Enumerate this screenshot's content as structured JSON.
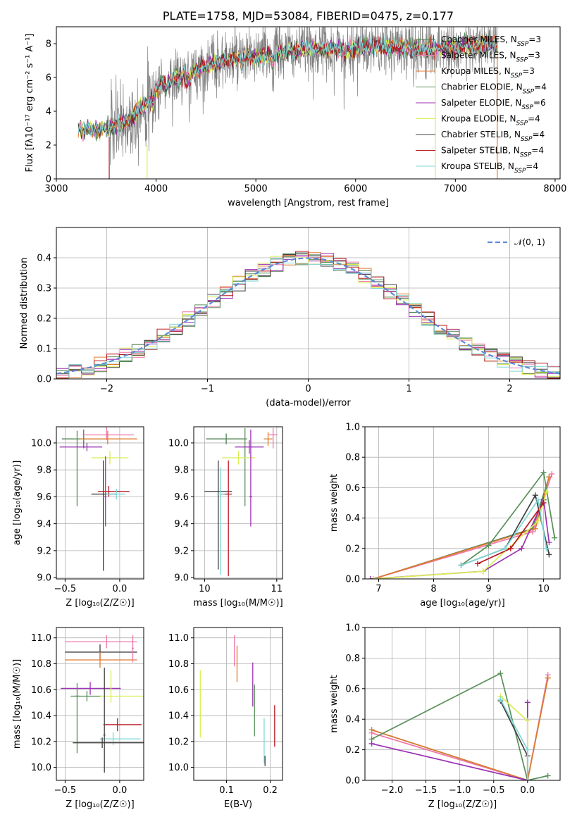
{
  "colors": {
    "chabrier_miles": "#4d7f4d",
    "salpeter_miles": "#ee77aa",
    "kroupa_miles": "#e07b2e",
    "chabrier_elodie": "#5a8f5a",
    "salpeter_elodie": "#9b30b4",
    "kroupa_elodie": "#d8ee55",
    "chabrier_stelib": "#404040",
    "salpeter_stelib": "#b8141e",
    "kroupa_stelib": "#7fd7d7",
    "observed": "#808080",
    "normal": "#5b8bd6"
  },
  "chart_data": [
    {
      "id": "spectrum",
      "type": "line",
      "title": "PLATE=1758, MJD=53084, FIBERID=0475, z=0.177",
      "xlabel": "wavelength [Angstrom, rest frame]",
      "ylabel": "Flux [fλ10⁻¹⁷ erg cm⁻² s⁻¹ A⁻¹]",
      "xlim": [
        3000,
        8050
      ],
      "ylim": [
        0,
        9
      ],
      "xticks": [
        "3000",
        "4000",
        "5000",
        "6000",
        "7000",
        "8000"
      ],
      "yticks": [
        "0",
        "2",
        "4",
        "6",
        "8"
      ],
      "grid": false,
      "legend_position": "top-right",
      "continuum": {
        "x": [
          3220,
          3500,
          3700,
          3900,
          4050,
          4300,
          4600,
          4900,
          5200,
          5500,
          5800,
          6100,
          6400,
          6700,
          7000,
          7300,
          7420
        ],
        "y": [
          2.9,
          3.0,
          3.3,
          4.6,
          5.6,
          6.2,
          6.9,
          7.2,
          7.4,
          7.7,
          7.7,
          7.8,
          7.8,
          7.7,
          7.8,
          7.9,
          8.0
        ]
      },
      "series": [
        {
          "name": "Chabrier MILES, N_SSP=3",
          "color_key": "chabrier_miles"
        },
        {
          "name": "Salpeter MILES, N_SSP=3",
          "color_key": "salpeter_miles"
        },
        {
          "name": "Kroupa MILES, N_SSP=3",
          "color_key": "kroupa_miles"
        },
        {
          "name": "Chabrier ELODIE, N_SSP=4",
          "color_key": "chabrier_elodie"
        },
        {
          "name": "Salpeter ELODIE, N_SSP=6",
          "color_key": "salpeter_elodie"
        },
        {
          "name": "Kroupa ELODIE, N_SSP=4",
          "color_key": "kroupa_elodie"
        },
        {
          "name": "Chabrier STELIB, N_SSP=4",
          "color_key": "chabrier_stelib"
        },
        {
          "name": "Salpeter STELIB, N_SSP=4",
          "color_key": "salpeter_stelib"
        },
        {
          "name": "Kroupa STELIB, N_SSP=4",
          "color_key": "kroupa_stelib"
        }
      ]
    },
    {
      "id": "residuals",
      "type": "line",
      "xlabel": "(data-model)/error",
      "ylabel": "Normed distribution",
      "xlim": [
        -2.5,
        2.5
      ],
      "ylim": [
        0,
        0.5
      ],
      "xticks": [
        "−2",
        "−1",
        "0",
        "1",
        "2"
      ],
      "yticks": [
        "0.0",
        "0.1",
        "0.2",
        "0.3",
        "0.4"
      ],
      "grid": true,
      "legend_position": "top-right",
      "legend_label": "𝒩(0, 1)"
    },
    {
      "id": "age_vs_Z",
      "type": "scatter",
      "xlabel": "Z [log₁₀(Z/Z☉)]",
      "ylabel": "age  [log₁₀(age/yr)]",
      "xlim": [
        -0.58,
        0.22
      ],
      "ylim": [
        8.99,
        10.12
      ],
      "xticks": [
        "−0.5",
        "0.0"
      ],
      "yticks": [
        "9.0",
        "9.2",
        "9.4",
        "9.6",
        "9.8",
        "10.0"
      ],
      "grid": true,
      "points": [
        {
          "x": -0.33,
          "y": 10.03,
          "xerr": [
            0.2,
            0.2
          ],
          "yerr": [
            0.07,
            0.07
          ],
          "color_key": "chabrier_miles"
        },
        {
          "x": -0.12,
          "y": 10.06,
          "xerr": [
            0.22,
            0.25
          ],
          "yerr": [
            0.04,
            0.06
          ],
          "color_key": "salpeter_miles"
        },
        {
          "x": -0.11,
          "y": 10.03,
          "xerr": [
            0.25,
            0.27
          ],
          "yerr": [
            0.04,
            0.06
          ],
          "color_key": "kroupa_miles"
        },
        {
          "x": -0.39,
          "y": 10.03,
          "xerr": [
            0.03,
            0.03
          ],
          "yerr": [
            0.5,
            0.06
          ],
          "color_key": "chabrier_elodie"
        },
        {
          "x": -0.3,
          "y": 9.97,
          "xerr": [
            0.25,
            0.14
          ],
          "yerr": [
            0.03,
            0.03
          ],
          "color_key": "salpeter_elodie"
        },
        {
          "x": -0.09,
          "y": 9.89,
          "xerr": [
            0.17,
            0.17
          ],
          "yerr": [
            0.05,
            0.05
          ],
          "color_key": "kroupa_elodie"
        },
        {
          "x": -0.15,
          "y": 9.62,
          "xerr": [
            0.11,
            0.12
          ],
          "yerr": [
            0.57,
            0.25
          ],
          "color_key": "chabrier_stelib"
        },
        {
          "x": -0.1,
          "y": 9.64,
          "xerr": [
            0.1,
            0.19
          ],
          "yerr": [
            0.04,
            0.04
          ],
          "color_key": "salpeter_stelib"
        },
        {
          "x": -0.03,
          "y": 9.62,
          "xerr": [
            0.1,
            0.08
          ],
          "yerr": [
            0.04,
            0.04
          ],
          "color_key": "kroupa_stelib"
        },
        {
          "x": -0.13,
          "y": 9.6,
          "xerr": [
            0.01,
            0.01
          ],
          "yerr": [
            0.22,
            0.3
          ],
          "color_key": "salpeter_elodie"
        }
      ]
    },
    {
      "id": "age_vs_mass",
      "type": "scatter",
      "xlabel": "mass [log₁₀(M/M☉)]",
      "ylabel": "",
      "xlim": [
        9.85,
        11.08
      ],
      "ylim": [
        8.99,
        10.12
      ],
      "xticks": [
        "10",
        "11"
      ],
      "yticks": [
        "9.0",
        "9.2",
        "9.4",
        "9.6",
        "9.8",
        "10.0"
      ],
      "grid": true,
      "points": [
        {
          "x": 10.3,
          "y": 10.03,
          "xerr": [
            0.28,
            0.28
          ],
          "yerr": [
            0.04,
            0.04
          ],
          "color_key": "chabrier_miles"
        },
        {
          "x": 10.95,
          "y": 10.06,
          "xerr": [
            0.06,
            0.06
          ],
          "yerr": [
            0.1,
            0.05
          ],
          "color_key": "salpeter_miles"
        },
        {
          "x": 10.88,
          "y": 10.03,
          "xerr": [
            0.06,
            0.06
          ],
          "yerr": [
            0.05,
            0.05
          ],
          "color_key": "kroupa_miles"
        },
        {
          "x": 10.56,
          "y": 10.03,
          "xerr": [
            0.03,
            0.03
          ],
          "yerr": [
            0.5,
            0.08
          ],
          "color_key": "chabrier_elodie"
        },
        {
          "x": 10.62,
          "y": 9.97,
          "xerr": [
            0.2,
            0.2
          ],
          "yerr": [
            0.05,
            0.05
          ],
          "color_key": "salpeter_elodie"
        },
        {
          "x": 10.47,
          "y": 9.89,
          "xerr": [
            0.23,
            0.23
          ],
          "yerr": [
            0.05,
            0.05
          ],
          "color_key": "kroupa_elodie"
        },
        {
          "x": 10.19,
          "y": 9.64,
          "xerr": [
            0.19,
            0.19
          ],
          "yerr": [
            0.58,
            0.23
          ],
          "color_key": "chabrier_stelib"
        },
        {
          "x": 10.33,
          "y": 9.62,
          "xerr": [
            0.1,
            0.05
          ],
          "yerr": [
            0.61,
            0.25
          ],
          "color_key": "salpeter_stelib"
        },
        {
          "x": 10.22,
          "y": 9.62,
          "xerr": [
            0.05,
            0.06
          ],
          "yerr": [
            0.6,
            0.2
          ],
          "color_key": "kroupa_stelib"
        },
        {
          "x": 10.64,
          "y": 9.6,
          "xerr": [
            0.02,
            0.02
          ],
          "yerr": [
            0.22,
            0.5
          ],
          "color_key": "salpeter_elodie"
        }
      ]
    },
    {
      "id": "mass_weight_vs_age",
      "type": "line",
      "xlabel": "age  [log₁₀(age/yr)]",
      "ylabel": "mass weight",
      "xlim": [
        6.75,
        10.3
      ],
      "ylim": [
        0,
        1
      ],
      "xticks": [
        "7",
        "8",
        "9",
        "10"
      ],
      "yticks": [
        "0.0",
        "0.2",
        "0.4",
        "0.6",
        "0.8",
        "1.0"
      ],
      "grid": true,
      "series": [
        {
          "color_key": "chabrier_miles",
          "x": [
            6.9,
            9.8,
            10.1
          ],
          "y": [
            0.0,
            0.33,
            0.67
          ]
        },
        {
          "color_key": "salpeter_miles",
          "x": [
            6.9,
            9.8,
            10.15
          ],
          "y": [
            0.0,
            0.31,
            0.69
          ]
        },
        {
          "color_key": "kroupa_miles",
          "x": [
            6.9,
            9.85,
            10.1
          ],
          "y": [
            0.0,
            0.33,
            0.67
          ]
        },
        {
          "color_key": "chabrier_elodie",
          "x": [
            8.5,
            9.0,
            10.0,
            10.2
          ],
          "y": [
            0.09,
            0.22,
            0.7,
            0.27
          ]
        },
        {
          "color_key": "salpeter_elodie",
          "x": [
            6.85,
            8.9,
            9.6,
            10.0,
            10.1
          ],
          "y": [
            0.0,
            0.05,
            0.2,
            0.52,
            0.24
          ]
        },
        {
          "color_key": "kroupa_elodie",
          "x": [
            6.9,
            8.9,
            9.9,
            10.05
          ],
          "y": [
            0.0,
            0.05,
            0.38,
            0.57
          ]
        },
        {
          "color_key": "chabrier_stelib",
          "x": [
            8.5,
            9.3,
            9.85,
            10.1
          ],
          "y": [
            0.09,
            0.2,
            0.55,
            0.16
          ]
        },
        {
          "color_key": "salpeter_stelib",
          "x": [
            8.8,
            9.4,
            10.0
          ],
          "y": [
            0.1,
            0.2,
            0.5
          ]
        },
        {
          "color_key": "kroupa_stelib",
          "x": [
            8.5,
            9.3,
            9.9,
            10.05
          ],
          "y": [
            0.09,
            0.2,
            0.52,
            0.2
          ]
        }
      ]
    },
    {
      "id": "mass_vs_Z",
      "type": "scatter",
      "xlabel": "Z [log₁₀(Z/Z☉)]",
      "ylabel": "mass [log₁₀(M/M☉)]",
      "xlim": [
        -0.58,
        0.22
      ],
      "ylim": [
        9.9,
        11.08
      ],
      "xticks": [
        "−0.5",
        "0.0"
      ],
      "yticks": [
        "10.0",
        "10.2",
        "10.4",
        "10.6",
        "10.8",
        "11.0"
      ],
      "grid": true,
      "points": [
        {
          "x": -0.12,
          "y": 10.97,
          "xerr": [
            0.38,
            0.28
          ],
          "yerr": [
            0.05,
            0.05
          ],
          "color_key": "salpeter_miles"
        },
        {
          "x": -0.18,
          "y": 10.89,
          "xerr": [
            0.32,
            0.34
          ],
          "yerr": [
            0.06,
            0.06
          ],
          "color_key": "chabrier_stelib"
        },
        {
          "x": -0.18,
          "y": 10.83,
          "xerr": [
            0.32,
            0.34
          ],
          "yerr": [
            0.06,
            0.06
          ],
          "color_key": "kroupa_miles"
        },
        {
          "x": -0.27,
          "y": 10.61,
          "xerr": [
            0.27,
            0.28
          ],
          "yerr": [
            0.05,
            0.05
          ],
          "color_key": "salpeter_elodie"
        },
        {
          "x": -0.3,
          "y": 10.55,
          "xerr": [
            0.15,
            0.14
          ],
          "yerr": [
            0.04,
            0.04
          ],
          "color_key": "chabrier_elodie"
        },
        {
          "x": -0.39,
          "y": 10.55,
          "xerr": [
            0.02,
            0.02
          ],
          "yerr": [
            0.44,
            0.1
          ],
          "color_key": "chabrier_elodie"
        },
        {
          "x": -0.08,
          "y": 10.55,
          "xerr": [
            0.1,
            0.32
          ],
          "yerr": [
            0.05,
            0.2
          ],
          "color_key": "kroupa_elodie"
        },
        {
          "x": -0.02,
          "y": 10.33,
          "xerr": [
            0.13,
            0.22
          ],
          "yerr": [
            0.05,
            0.05
          ],
          "color_key": "salpeter_stelib"
        },
        {
          "x": -0.06,
          "y": 10.22,
          "xerr": [
            0.12,
            0.25
          ],
          "yerr": [
            0.05,
            0.05
          ],
          "color_key": "kroupa_stelib"
        },
        {
          "x": -0.16,
          "y": 10.19,
          "xerr": [
            0.27,
            0.4
          ],
          "yerr": [
            0.04,
            0.04
          ],
          "color_key": "chabrier_stelib"
        },
        {
          "x": -0.14,
          "y": 10.25,
          "xerr": [
            0.01,
            0.01
          ],
          "yerr": [
            0.29,
            0.52
          ],
          "color_key": "chabrier_stelib"
        },
        {
          "x": 0.12,
          "y": 10.92,
          "xerr": [
            0.01,
            0.01
          ],
          "yerr": [
            0.11,
            0.1
          ],
          "color_key": "salpeter_miles"
        }
      ]
    },
    {
      "id": "mass_vs_EBV",
      "type": "scatter",
      "xlabel": "E(B-V)",
      "ylabel": "",
      "xlim": [
        0.025,
        0.228
      ],
      "ylim": [
        9.9,
        11.08
      ],
      "xticks": [
        "0.1",
        "0.2"
      ],
      "yticks": [
        "10.0",
        "10.2",
        "10.4",
        "10.6",
        "10.8",
        "11.0"
      ],
      "grid": true,
      "points": [
        {
          "x": 0.118,
          "y": 10.9,
          "xerr": [
            0,
            0
          ],
          "yerr": [
            0.12,
            0.12
          ],
          "color_key": "salpeter_miles"
        },
        {
          "x": 0.124,
          "y": 10.8,
          "xerr": [
            0,
            0
          ],
          "yerr": [
            0.14,
            0.14
          ],
          "color_key": "kroupa_miles"
        },
        {
          "x": 0.04,
          "y": 10.49,
          "xerr": [
            0,
            0
          ],
          "yerr": [
            0.26,
            0.26
          ],
          "color_key": "kroupa_elodie"
        },
        {
          "x": 0.16,
          "y": 10.64,
          "xerr": [
            0,
            0
          ],
          "yerr": [
            0.17,
            0.17
          ],
          "color_key": "salpeter_elodie"
        },
        {
          "x": 0.164,
          "y": 10.44,
          "xerr": [
            0,
            0
          ],
          "yerr": [
            0.2,
            0.2
          ],
          "color_key": "chabrier_elodie"
        },
        {
          "x": 0.186,
          "y": 10.2,
          "xerr": [
            0,
            0
          ],
          "yerr": [
            0.17,
            0.18
          ],
          "color_key": "kroupa_stelib"
        },
        {
          "x": 0.188,
          "y": 10.05,
          "xerr": [
            0,
            0
          ],
          "yerr": [
            0.04,
            0.04
          ],
          "color_key": "chabrier_stelib"
        },
        {
          "x": 0.21,
          "y": 10.32,
          "xerr": [
            0,
            0
          ],
          "yerr": [
            0.16,
            0.16
          ],
          "color_key": "salpeter_stelib"
        }
      ]
    },
    {
      "id": "mass_weight_vs_Z",
      "type": "line",
      "xlabel": "Z [log₁₀(Z/Z☉)]",
      "ylabel": "mass weight",
      "xlim": [
        -2.4,
        0.48
      ],
      "ylim": [
        0,
        1
      ],
      "xticks": [
        "−2.0",
        "−1.5",
        "−1.0",
        "−0.5",
        "0.0"
      ],
      "yticks": [
        "0.0",
        "0.2",
        "0.4",
        "0.6",
        "0.8",
        "1.0"
      ],
      "grid": true,
      "series": [
        {
          "color_key": "chabrier_miles",
          "x": [
            -2.3,
            0.0,
            0.3
          ],
          "y": [
            0.33,
            0.0,
            0.67
          ]
        },
        {
          "color_key": "salpeter_miles",
          "x": [
            -2.3,
            0.0,
            0.3
          ],
          "y": [
            0.31,
            0.0,
            0.69
          ]
        },
        {
          "color_key": "kroupa_miles",
          "x": [
            -2.3,
            0.0,
            0.3
          ],
          "y": [
            0.33,
            0.0,
            0.67
          ]
        },
        {
          "color_key": "chabrier_elodie",
          "x": [
            -2.3,
            -0.4,
            0.0,
            0.3
          ],
          "y": [
            0.27,
            0.7,
            0.0,
            0.03
          ]
        },
        {
          "color_key": "salpeter_elodie",
          "x": [
            -2.3,
            0.0,
            0.0
          ],
          "y": [
            0.24,
            0.0,
            0.51
          ]
        },
        {
          "color_key": "kroupa_elodie",
          "x": [
            -0.4,
            0.0,
            0.0
          ],
          "y": [
            0.55,
            0.39,
            0.0
          ]
        },
        {
          "color_key": "chabrier_stelib",
          "x": [
            -0.4,
            0.0,
            0.0
          ],
          "y": [
            0.52,
            0.16,
            0.0
          ]
        },
        {
          "color_key": "kroupa_stelib",
          "x": [
            -0.4,
            0.0,
            0.0
          ],
          "y": [
            0.53,
            0.2,
            0.0
          ]
        }
      ]
    }
  ]
}
